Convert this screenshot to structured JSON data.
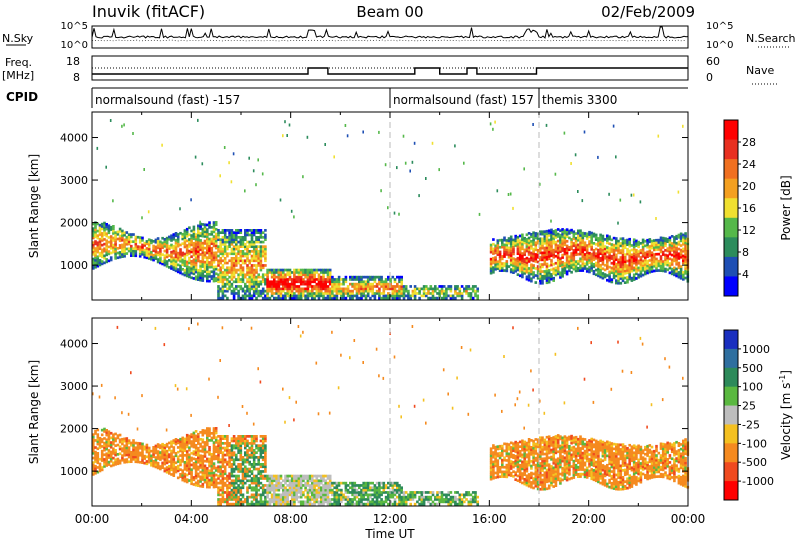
{
  "header": {
    "station": "Inuvik (fitACF)",
    "beam": "Beam 00",
    "date": "02/Feb/2009"
  },
  "top_panels": {
    "nsky_label": "N.Sky",
    "nsearch_label": "N.Search",
    "freq_label_top": "Freq.",
    "freq_label_bottom": "[MHz]",
    "nave_label": "Nave",
    "cpid_label": "CPID",
    "noise_ticks_left": [
      "10^5",
      "10^0"
    ],
    "noise_ticks_right": [
      "10^5",
      "10^0"
    ],
    "freq_ticks_left": [
      "18",
      "8"
    ],
    "nave_ticks_right": [
      "60",
      "0"
    ]
  },
  "cpid_segments": [
    {
      "label": "normalsound (fast) -157",
      "start_h": 0
    },
    {
      "label": "normalsound (fast) 157",
      "start_h": 12
    },
    {
      "label": "themis 3300",
      "start_h": 18
    }
  ],
  "chart_data": [
    {
      "type": "heatmap",
      "name": "power",
      "ylabel": "Slant Range [km]",
      "xlim_hours": [
        0,
        24
      ],
      "ylim": [
        180,
        4600
      ],
      "yticks": [
        1000,
        2000,
        3000,
        4000
      ],
      "colorbar_label": "Power [dB]",
      "colorbar_ticks": [
        4,
        8,
        12,
        16,
        20,
        24,
        28
      ],
      "colorbar_range": [
        0,
        32
      ],
      "colors": [
        "#0000ff",
        "#1e4fb4",
        "#2c8c5c",
        "#55b84a",
        "#f0e030",
        "#f4a020",
        "#f07020",
        "#e83020",
        "#ff0000"
      ]
    },
    {
      "type": "heatmap",
      "name": "velocity",
      "ylabel": "Slant Range [km]",
      "xlabel": "Time UT",
      "xticks": [
        "00:00",
        "04:00",
        "08:00",
        "12:00",
        "16:00",
        "20:00",
        "00:00"
      ],
      "xlim_hours": [
        0,
        24
      ],
      "ylim": [
        180,
        4600
      ],
      "yticks": [
        1000,
        2000,
        3000,
        4000
      ],
      "colorbar_label": "Velocity [m s",
      "colorbar_label_sup": "-1",
      "colorbar_label_end": "]",
      "colorbar_ticks": [
        "1000",
        "500",
        "100",
        "25",
        "-25",
        "-100",
        "-500",
        "-1000"
      ],
      "colors": [
        "#1a2fbf",
        "#2f6f9f",
        "#2d8a5a",
        "#5ab840",
        "#bdbdbd",
        "#f4c020",
        "#f58a1f",
        "#f04a1f",
        "#ff0000"
      ]
    }
  ]
}
